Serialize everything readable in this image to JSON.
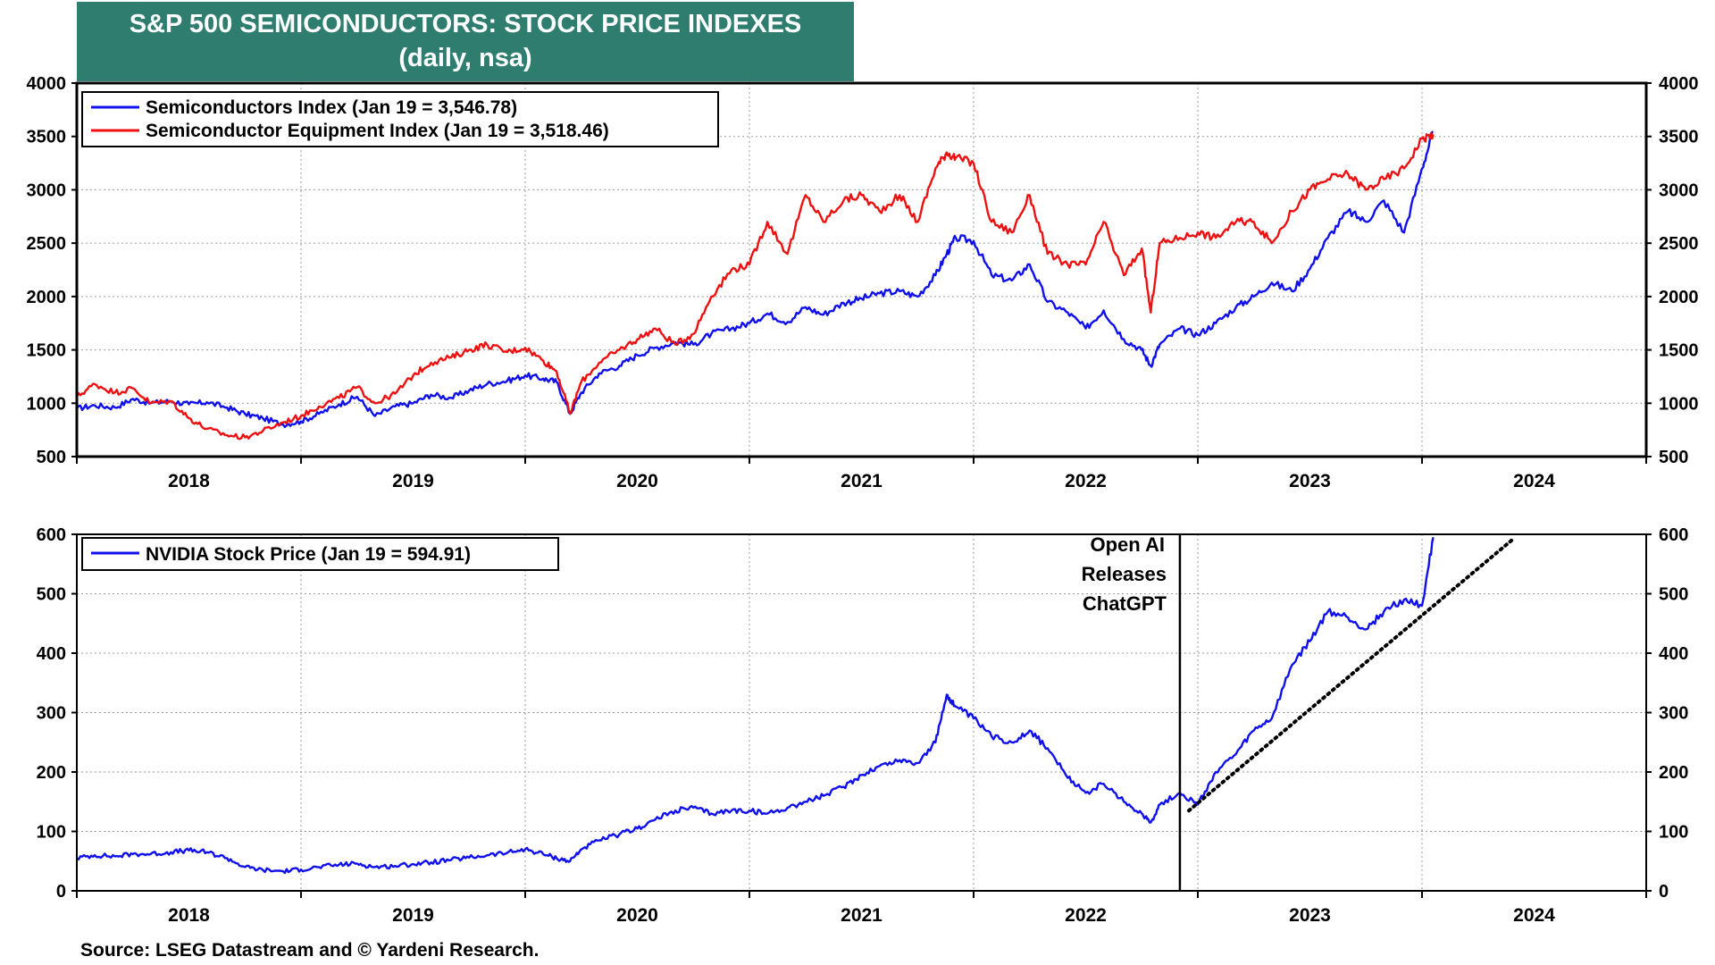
{
  "title": {
    "line1": "S&P 500 SEMICONDUCTORS: STOCK PRICE INDEXES",
    "line2": "(daily, nsa)"
  },
  "source": "Source: LSEG Datastream and © Yardeni Research.",
  "colors": {
    "title_bg": "#2e7d6f",
    "blue": "#1010ee",
    "red": "#ee1010"
  },
  "chart_data": [
    {
      "type": "line",
      "title": "S&P 500 SEMICONDUCTORS: STOCK PRICE INDEXES (daily, nsa)",
      "xlabel": "",
      "ylabel": "",
      "xlim": [
        2018.0,
        2025.0
      ],
      "ylim": [
        500,
        4000
      ],
      "yticks": [
        500,
        1000,
        1500,
        2000,
        2500,
        3000,
        3500,
        4000
      ],
      "ytick_labels": [
        "500",
        "1000",
        "1500",
        "2000",
        "2500",
        "3000",
        "3500",
        "4000"
      ],
      "xtick_labels": [
        "2018",
        "2019",
        "2020",
        "2021",
        "2022",
        "2023",
        "2024"
      ],
      "legend": "top-left",
      "grid": true,
      "series": [
        {
          "name": "Semiconductors Index (Jan 19 = 3,546.78)",
          "color": "blue",
          "x": [
            2018.0,
            2018.08,
            2018.17,
            2018.25,
            2018.33,
            2018.42,
            2018.5,
            2018.58,
            2018.67,
            2018.75,
            2018.83,
            2018.92,
            2019.0,
            2019.08,
            2019.17,
            2019.25,
            2019.33,
            2019.42,
            2019.5,
            2019.58,
            2019.67,
            2019.75,
            2019.83,
            2019.92,
            2020.0,
            2020.08,
            2020.14,
            2020.2,
            2020.25,
            2020.33,
            2020.42,
            2020.5,
            2020.58,
            2020.67,
            2020.75,
            2020.83,
            2020.92,
            2021.0,
            2021.08,
            2021.17,
            2021.25,
            2021.33,
            2021.42,
            2021.5,
            2021.58,
            2021.67,
            2021.75,
            2021.83,
            2021.88,
            2021.92,
            2022.0,
            2022.08,
            2022.17,
            2022.25,
            2022.33,
            2022.42,
            2022.5,
            2022.58,
            2022.67,
            2022.75,
            2022.79,
            2022.83,
            2022.92,
            2023.0,
            2023.08,
            2023.17,
            2023.25,
            2023.33,
            2023.42,
            2023.5,
            2023.58,
            2023.67,
            2023.75,
            2023.83,
            2023.92,
            2024.0,
            2024.05
          ],
          "y": [
            950,
            980,
            960,
            1040,
            1000,
            1020,
            990,
            1010,
            960,
            900,
            860,
            800,
            830,
            900,
            990,
            1060,
            880,
            970,
            1000,
            1080,
            1050,
            1120,
            1180,
            1210,
            1260,
            1230,
            1200,
            900,
            1100,
            1280,
            1350,
            1450,
            1520,
            1570,
            1550,
            1650,
            1700,
            1750,
            1840,
            1760,
            1900,
            1830,
            1940,
            1980,
            2030,
            2050,
            2000,
            2200,
            2400,
            2550,
            2520,
            2200,
            2150,
            2300,
            1950,
            1850,
            1700,
            1870,
            1600,
            1500,
            1350,
            1550,
            1700,
            1640,
            1750,
            1900,
            2000,
            2130,
            2050,
            2260,
            2550,
            2800,
            2700,
            2900,
            2600,
            3200,
            3545
          ]
        },
        {
          "name": "Semiconductor Equipment Index (Jan 19 = 3,518.46)",
          "color": "red",
          "x": [
            2018.0,
            2018.08,
            2018.17,
            2018.25,
            2018.33,
            2018.42,
            2018.5,
            2018.58,
            2018.67,
            2018.75,
            2018.83,
            2018.92,
            2019.0,
            2019.08,
            2019.17,
            2019.25,
            2019.33,
            2019.42,
            2019.5,
            2019.58,
            2019.67,
            2019.75,
            2019.83,
            2019.92,
            2020.0,
            2020.08,
            2020.14,
            2020.2,
            2020.25,
            2020.33,
            2020.42,
            2020.5,
            2020.58,
            2020.67,
            2020.75,
            2020.83,
            2020.92,
            2021.0,
            2021.08,
            2021.17,
            2021.25,
            2021.33,
            2021.42,
            2021.5,
            2021.58,
            2021.67,
            2021.75,
            2021.83,
            2021.88,
            2021.92,
            2022.0,
            2022.08,
            2022.17,
            2022.25,
            2022.33,
            2022.42,
            2022.5,
            2022.58,
            2022.67,
            2022.75,
            2022.79,
            2022.83,
            2022.92,
            2023.0,
            2023.08,
            2023.17,
            2023.25,
            2023.33,
            2023.42,
            2023.5,
            2023.58,
            2023.67,
            2023.75,
            2023.83,
            2023.92,
            2024.0,
            2024.05
          ],
          "y": [
            1060,
            1180,
            1100,
            1140,
            1000,
            1020,
            860,
            760,
            700,
            680,
            740,
            820,
            880,
            970,
            1050,
            1150,
            1000,
            1090,
            1260,
            1380,
            1430,
            1500,
            1550,
            1480,
            1520,
            1400,
            1300,
            900,
            1200,
            1380,
            1500,
            1600,
            1700,
            1550,
            1650,
            2000,
            2250,
            2300,
            2700,
            2400,
            2950,
            2700,
            2900,
            2950,
            2800,
            2950,
            2700,
            3200,
            3350,
            3300,
            3250,
            2700,
            2600,
            2950,
            2400,
            2300,
            2300,
            2700,
            2200,
            2450,
            1850,
            2500,
            2550,
            2600,
            2550,
            2700,
            2700,
            2500,
            2800,
            3000,
            3100,
            3150,
            3000,
            3100,
            3200,
            3480,
            3520
          ]
        }
      ]
    },
    {
      "type": "line",
      "title": "NVIDIA Stock Price",
      "xlabel": "",
      "ylabel": "",
      "xlim": [
        2018.0,
        2025.0
      ],
      "ylim": [
        0,
        600
      ],
      "yticks": [
        0,
        100,
        200,
        300,
        400,
        500,
        600
      ],
      "ytick_labels": [
        "0",
        "100",
        "200",
        "300",
        "400",
        "500",
        "600"
      ],
      "xtick_labels": [
        "2018",
        "2019",
        "2020",
        "2021",
        "2022",
        "2023",
        "2024"
      ],
      "legend": "top-left",
      "grid": true,
      "annotations": [
        {
          "lines": [
            "Open AI",
            "Releases",
            "ChatGPT"
          ],
          "x": 2022.92,
          "kind": "vertical-line"
        }
      ],
      "trendline": {
        "style": "dotted",
        "x": [
          2022.96,
          2024.4
        ],
        "y": [
          135,
          590
        ]
      },
      "series": [
        {
          "name": "NVIDIA Stock Price (Jan 19 = 594.91)",
          "color": "blue",
          "x": [
            2018.0,
            2018.08,
            2018.17,
            2018.25,
            2018.33,
            2018.42,
            2018.5,
            2018.58,
            2018.67,
            2018.75,
            2018.83,
            2018.92,
            2019.0,
            2019.08,
            2019.17,
            2019.25,
            2019.33,
            2019.42,
            2019.5,
            2019.58,
            2019.67,
            2019.75,
            2019.83,
            2019.92,
            2020.0,
            2020.08,
            2020.14,
            2020.2,
            2020.25,
            2020.33,
            2020.42,
            2020.5,
            2020.58,
            2020.67,
            2020.75,
            2020.83,
            2020.92,
            2021.0,
            2021.08,
            2021.17,
            2021.25,
            2021.33,
            2021.42,
            2021.5,
            2021.58,
            2021.67,
            2021.75,
            2021.83,
            2021.88,
            2021.92,
            2022.0,
            2022.08,
            2022.17,
            2022.25,
            2022.33,
            2022.42,
            2022.5,
            2022.58,
            2022.67,
            2022.75,
            2022.79,
            2022.83,
            2022.92,
            2023.0,
            2023.08,
            2023.17,
            2023.25,
            2023.33,
            2023.42,
            2023.5,
            2023.58,
            2023.67,
            2023.75,
            2023.83,
            2023.92,
            2024.0,
            2024.05
          ],
          "y": [
            55,
            60,
            58,
            62,
            62,
            65,
            68,
            65,
            55,
            40,
            35,
            33,
            36,
            40,
            44,
            46,
            40,
            42,
            45,
            48,
            52,
            56,
            60,
            64,
            70,
            62,
            55,
            50,
            70,
            85,
            95,
            105,
            120,
            135,
            140,
            130,
            135,
            135,
            130,
            140,
            150,
            160,
            175,
            195,
            210,
            220,
            215,
            250,
            330,
            310,
            290,
            260,
            250,
            270,
            240,
            190,
            165,
            180,
            150,
            130,
            115,
            145,
            165,
            145,
            200,
            230,
            270,
            290,
            380,
            420,
            470,
            460,
            440,
            470,
            490,
            480,
            595
          ]
        }
      ]
    }
  ]
}
